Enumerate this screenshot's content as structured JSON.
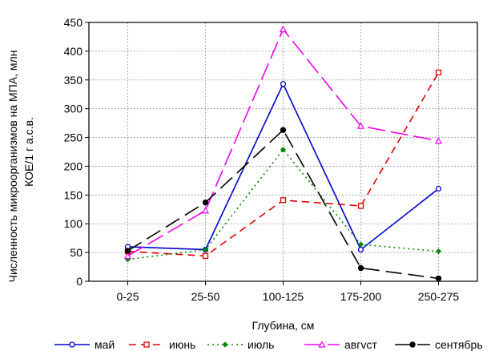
{
  "chart_data": {
    "type": "line",
    "categories": [
      "0-25",
      "25-50",
      "100-125",
      "175-200",
      "250-275"
    ],
    "ylim": [
      0,
      450
    ],
    "yticks": [
      0,
      50,
      100,
      150,
      200,
      250,
      300,
      350,
      400,
      450
    ],
    "grid": true,
    "xlabel": "Глубина, см",
    "ylabel_lines": [
      "Численность микроорганизмов на МПА, млн",
      "КОЕ/1 г а.с.в."
    ],
    "legend_position": "bottom",
    "series": [
      {
        "name": "май",
        "values": [
          60,
          55,
          343,
          55,
          161
        ],
        "color": "#0000cc",
        "dash": "",
        "marker": "circle-open"
      },
      {
        "name": "июнь",
        "values": [
          52,
          44,
          141,
          131,
          363
        ],
        "color": "#dd0000",
        "dash": "9,6",
        "marker": "square-open"
      },
      {
        "name": "июль",
        "values": [
          38,
          55,
          229,
          64,
          52
        ],
        "color": "#008800",
        "dash": "2,4",
        "marker": "diamond"
      },
      {
        "name": "авгvст",
        "values": [
          44,
          123,
          438,
          270,
          244
        ],
        "color": "#ee00ee",
        "dash": "22,7",
        "marker": "triangle-open"
      },
      {
        "name": "сентябрь",
        "values": [
          53,
          137,
          263,
          23,
          5
        ],
        "color": "#000000",
        "dash": "20,8",
        "marker": "circle-filled"
      }
    ]
  }
}
